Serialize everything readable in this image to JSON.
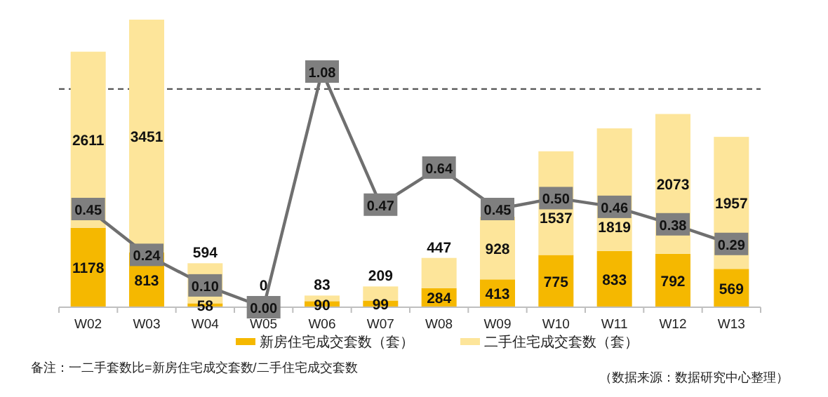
{
  "chart_data": {
    "type": "bar",
    "stacked": true,
    "data_labels": true,
    "legend": "bottom",
    "tick_labels": "x",
    "categories": [
      "W02",
      "W03",
      "W04",
      "W05",
      "W06",
      "W07",
      "W08",
      "W09",
      "W10",
      "W11",
      "W12",
      "W13"
    ],
    "series": [
      {
        "name": "新房住宅成交套数（套）",
        "color": "#f5b800",
        "values": [
          1178,
          813,
          58,
          null,
          90,
          99,
          284,
          413,
          775,
          833,
          792,
          569
        ]
      },
      {
        "name": "二手住宅成交套数（套）",
        "color": "#fde59a",
        "values": [
          2611,
          3451,
          594,
          0,
          83,
          209,
          447,
          928,
          1537,
          1819,
          2073,
          1957
        ]
      },
      {
        "type": "line",
        "axis": "y2",
        "marker": "square",
        "color": "#6f6f6f",
        "values": [
          0.45,
          0.24,
          0.1,
          0.0,
          1.08,
          0.47,
          0.64,
          0.45,
          0.5,
          0.46,
          0.38,
          0.29
        ],
        "value_labels": [
          "0.45",
          "0.24",
          "0.10",
          "0.00",
          "1.08",
          "0.47",
          "0.64",
          "0.45",
          "0.50",
          "0.46",
          "0.38",
          "0.29"
        ]
      }
    ],
    "ref_lines": [
      {
        "axis": "y2",
        "value": 1,
        "line_style": "dashed",
        "color": "#555555"
      }
    ],
    "annotations": [
      "备注：一二手套数比=新房住宅成交套数/二手住宅成交套数",
      "（数据来源：数据研究中心整理）"
    ]
  }
}
